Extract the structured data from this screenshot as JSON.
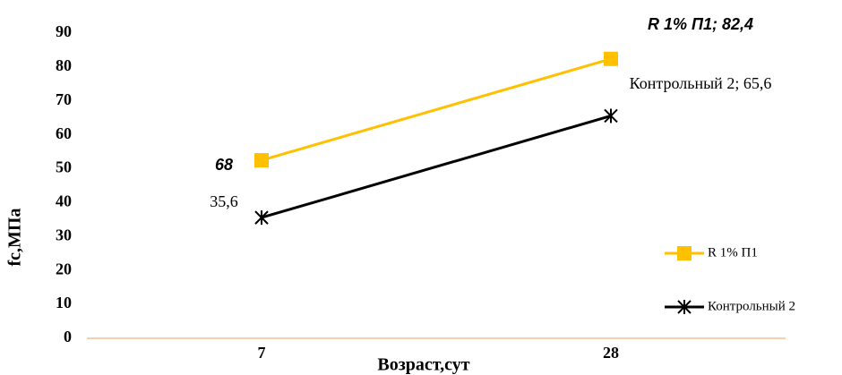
{
  "chart_data": {
    "type": "line",
    "categories": [
      "7",
      "28"
    ],
    "series": [
      {
        "name": "R 1% П1",
        "color": "#ffc000",
        "marker": "square",
        "values": [
          52.5,
          82.4
        ],
        "value_labels": [
          null,
          "R 1% П1; 82,4"
        ]
      },
      {
        "name": "Контрольный 2",
        "color": "#000000",
        "marker": "asterisk",
        "values": [
          35.6,
          65.6
        ],
        "value_labels": [
          "35,6",
          "Контрольный 2; 65,6"
        ]
      }
    ],
    "annotations": [
      "68"
    ],
    "x_label": "Возраст,сут",
    "y_label": "fc,МПа",
    "ylim": [
      0,
      90
    ],
    "yticks": [
      0,
      10,
      20,
      30,
      40,
      50,
      60,
      70,
      80,
      90
    ],
    "grid": false,
    "legend": "right"
  }
}
